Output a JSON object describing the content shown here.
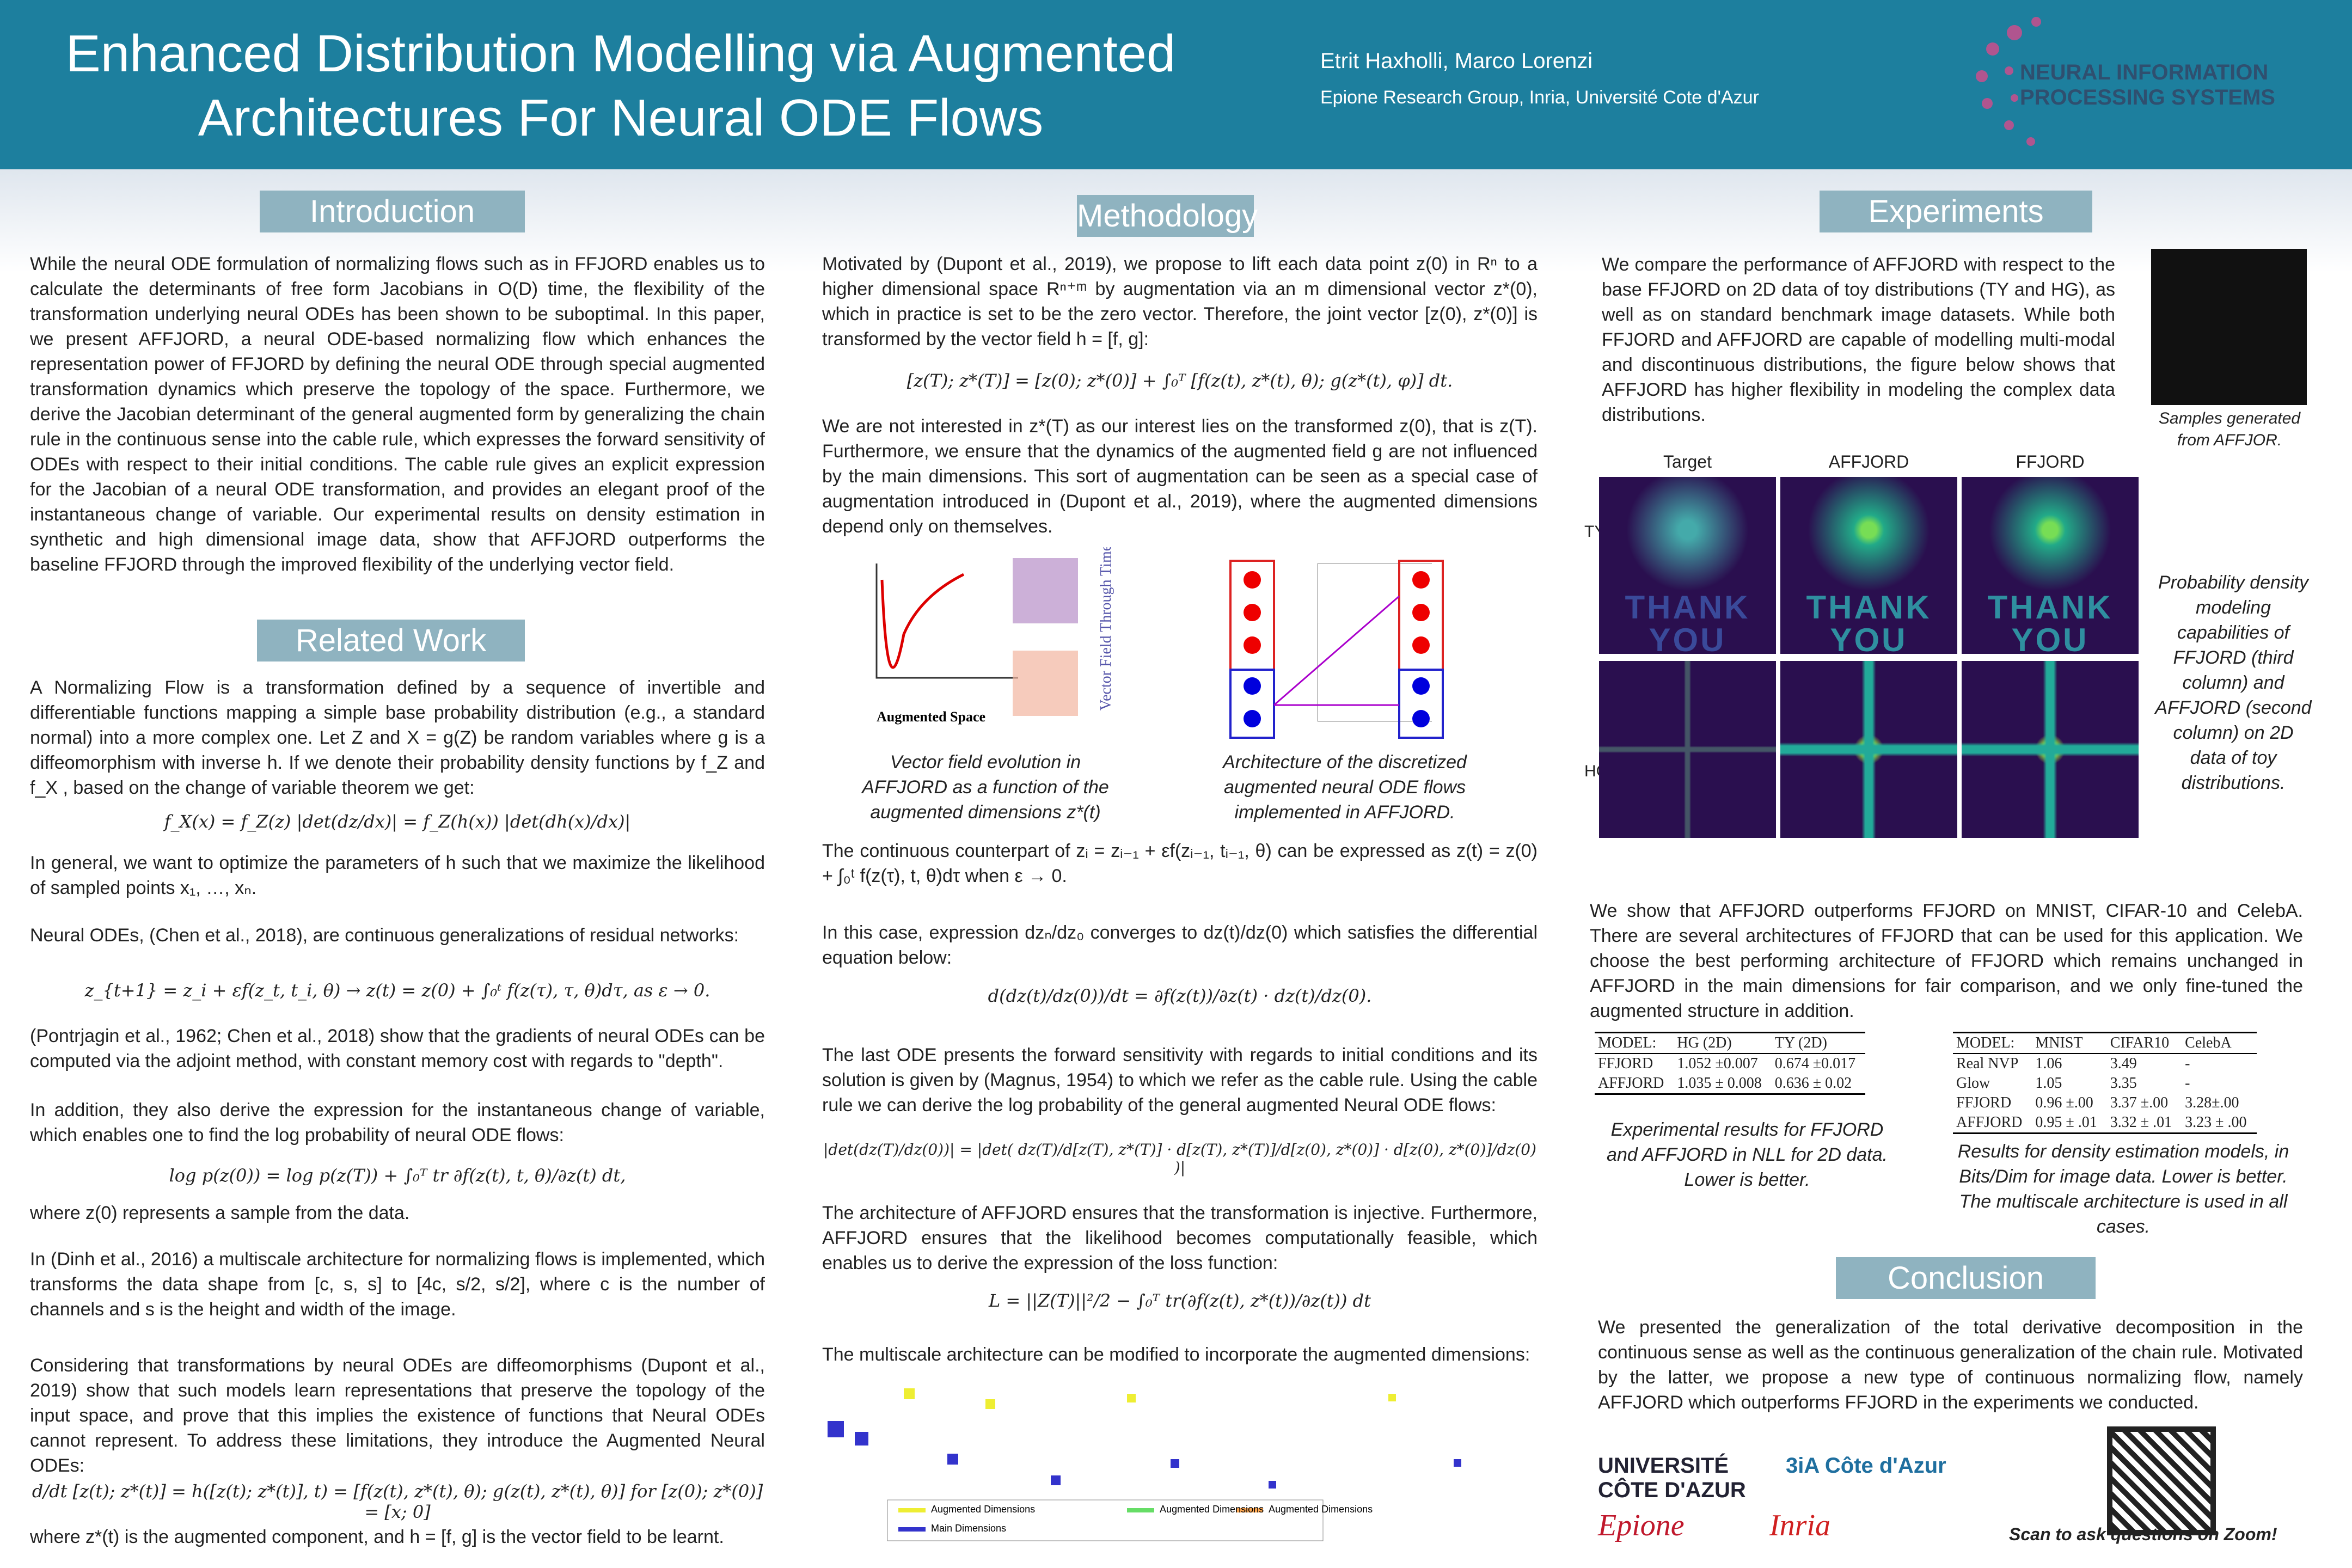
{
  "header": {
    "title": "Enhanced Distribution Modelling via Augmented Architectures For Neural ODE Flows",
    "authors": "Etrit Haxholli, Marco Lorenzi",
    "affiliation": "Epione Research Group, Inria, Université Cote d'Azur",
    "logo_text": "NEURAL INFORMATION PROCESSING SYSTEMS"
  },
  "introduction": {
    "heading": "Introduction",
    "text": "While the neural ODE formulation of normalizing flows such as in FFJORD enables us to calculate the determinants of free form Jacobians in O(D) time, the flexibility of the transformation underlying neural ODEs has been shown to be suboptimal. In this paper, we present AFFJORD, a neural ODE-based normalizing flow which enhances the representation power of FFJORD by defining the neural ODE through special augmented transformation dynamics which preserve the topology of the space. Furthermore, we derive the Jacobian determinant of the general augmented form by generalizing the chain rule in the continuous sense into the cable rule, which expresses the forward sensitivity of ODEs with respect to their initial conditions. The cable rule gives an explicit expression for the Jacobian of a neural ODE transformation, and provides an elegant proof of the instantaneous change of variable. Our experimental results on density estimation in synthetic and high dimensional image  data, show that AFFJORD outperforms the baseline FFJORD through the improved flexibility of the underlying vector field."
  },
  "related_work": {
    "heading": "Related Work",
    "paragraphs": [
      "A Normalizing Flow is a transformation defined by a sequence of invertible and differentiable functions mapping a simple base probability distribution (e.g., a standard normal) into a more complex one. Let Z and X = g(Z) be random variables where g is a diffeomorphism with inverse h. If we denote their probability density functions by f_Z and f_X , based on the change of variable theorem we get:",
      "f_X(x) = f_Z(z) |det(dz/dx)| = f_Z(h(x)) |det(dh(x)/dx)|",
      "In general, we want to optimize the parameters of h such that we maximize the likelihood of sampled points x₁, …, xₙ.",
      "Neural ODEs, (Chen et al., 2018), are continuous generalizations of residual networks:",
      "z_{t+1} = z_i + εf(z_t, t_i, θ) → z(t) = z(0) + ∫₀ᵗ f(z(τ), τ, θ)dτ, as ε → 0.",
      "(Pontrjagin et al., 1962; Chen et al., 2018) show that the gradients of neural ODEs can be computed via the adjoint method, with constant memory cost with regards to \"depth\".",
      "In addition, they also derive the expression for the instantaneous change of variable, which enables one to find the log probability of neural ODE flows:",
      "log p(z(0)) = log p(z(T)) + ∫₀ᵀ tr ∂f(z(t), t, θ)/∂z(t) dt,",
      "where z(0) represents a sample from the data.",
      "In (Dinh et al., 2016) a multiscale architecture for normalizing flows is implemented, which transforms the data shape from [c, s, s] to [4c, s/2, s/2], where c is the number of channels and s is the height and width of the image.",
      "Considering that transformations by neural ODEs are diffeomorphisms (Dupont et al., 2019)  show that such models learn representations that preserve the topology of the input space, and prove that this implies the existence of functions that Neural ODEs cannot represent. To address these limitations, they introduce the Augmented Neural ODEs:",
      "d/dt [z(t); z*(t)] = h([z(t); z*(t)], t) = [f(z(t), z*(t), θ); g(z(t), z*(t), θ)]  for  [z(0); z*(0)] = [x; 0]",
      "where z*(t) is the augmented component, and h = [f, g] is the vector  field to  be learnt."
    ]
  },
  "methodology": {
    "heading": "Methodology",
    "paragraphs": [
      "Motivated by (Dupont et al., 2019), we propose to lift each data point z(0) in Rⁿ to a higher dimensional space Rⁿ⁺ᵐ by augmentation via an m dimensional vector z*(0), which in practice is set to be the zero vector. Therefore, the joint vector [z(0), z*(0)] is transformed by the vector field h = [f, g]:",
      "[z(T); z*(T)] = [z(0); z*(0)] + ∫₀ᵀ [f(z(t), z*(t), θ); g(z*(t), φ)] dt.",
      "We are not interested in z*(T) as our interest lies on the transformed z(0), that is z(T). Furthermore, we ensure that the dynamics of the augmented field g are not influenced by the main dimensions. This sort of augmentation can be seen as a special case of augmentation introduced in (Dupont et al., 2019), where the augmented dimensions depend only on themselves.",
      "The continuous counterpart of  zᵢ = zᵢ₋₁ + εf(zᵢ₋₁, tᵢ₋₁, θ) can be expressed as  z(t) = z(0) + ∫₀ᵗ f(z(τ), t, θ)dτ  when ε → 0.",
      "In this case, expression dzₙ/dz₀ converges to dz(t)/dz(0) which satisfies the differential equation below:",
      "d(dz(t)/dz(0))/dt = ∂f(z(t))/∂z(t) · dz(t)/dz(0).",
      "The last ODE presents the forward sensitivity with regards to initial conditions and its solution is given by (Magnus, 1954) to which we refer as the cable rule. Using the cable rule we can derive the log probability of the general augmented Neural ODE flows:",
      "|det(dz(T)/dz(0))| = |det( dz(T)/d[z(T), z*(T)] · d[z(T), z*(T)]/d[z(0), z*(0)] · d[z(0), z*(0)]/dz(0) )|",
      "The architecture of AFFJORD ensures that the transformation is injective. Furthermore, AFFJORD ensures that the likelihood becomes computationally feasible, which enables us to derive the expression of the loss function:",
      "L = ||Z(T)||²/2 − ∫₀ᵀ tr(∂f(z(t), z*(t))/∂z(t)) dt",
      "The multiscale architecture can be modified to incorporate the augmented dimensions:"
    ],
    "figure1_caption": "Vector field evolution in AFFJORD as a function of the augmented dimensions z*(t)",
    "figure1_labels": [
      "Augmented Space",
      "Vector Field Through Time"
    ],
    "figure2_caption": "Architecture of the discretized augmented neural ODE flows implemented in AFFJORD.",
    "figure3_legend": [
      "Augmented Dimensions",
      "Augmented Dimensions",
      "Augmented Dimensions",
      "Main Dimensions"
    ]
  },
  "experiments": {
    "heading": "Experiments",
    "text1": "We compare the performance of AFFJORD with respect to the base FFJORD on 2D data of toy distributions (TY and HG), as well as on standard benchmark image datasets. While both FFJORD and AFFJORD are capable of modelling multi-modal and discontinuous distributions, the figure below shows that AFFJORD has higher flexibility in modeling the complex data distributions.",
    "samples_caption": "Samples generated from AFFJOR.",
    "grid_columns": [
      "Target",
      "AFFJORD",
      "FFJORD"
    ],
    "grid_rows": [
      "TY",
      "HG"
    ],
    "grid_text": [
      "THANK",
      "YOU"
    ],
    "grid_caption": "Probability density modeling capabilities of FFJORD (third column) and AFFJORD (second column) on 2D data of toy distributions.",
    "text2": "We show that AFFJORD outperforms FFJORD on MNIST, CIFAR-10 and CelebA. There are several architectures of FFJORD that can be used for this application. We choose the best performing architecture of FFJORD which remains unchanged in AFFJORD in the main dimensions for fair comparison, and we only fine-tuned the augmented structure in addition.",
    "table1": {
      "header": [
        "MODEL:",
        "HG (2D)",
        "TY (2D)"
      ],
      "rows": [
        [
          "FFJORD",
          "1.052 ±0.007",
          "0.674 ±0.017"
        ],
        [
          "AFFJORD",
          "1.035 ± 0.008",
          "0.636 ± 0.02"
        ]
      ],
      "caption": "Experimental results for FFJORD and AFFJORD in NLL for 2D data. Lower is better."
    },
    "table2": {
      "header": [
        "MODEL:",
        "MNIST",
        "CIFAR10",
        "CelebA"
      ],
      "rows": [
        [
          "Real NVP",
          "1.06",
          "3.49",
          "-"
        ],
        [
          "Glow",
          "1.05",
          "3.35",
          "-"
        ],
        [
          "FFJORD",
          "0.96 ±.00",
          "3.37 ±.00",
          "3.28±.00"
        ],
        [
          "AFFJORD",
          "0.95 ± .01",
          "3.32 ± .01",
          "3.23 ± .00"
        ]
      ],
      "caption": "Results for density estimation models, in Bits/Dim for image data. Lower is better. The multiscale architecture is used in all cases."
    }
  },
  "conclusion": {
    "heading": "Conclusion",
    "text": "We presented the generalization of the total derivative decomposition in the continuous sense as well as the continuous generalization of the chain rule. Motivated by the latter, we propose a new type of continuous normalizing flow, namely AFFJORD which outperforms FFJORD in the experiments we conducted."
  },
  "footer": {
    "logos": [
      "UNIVERSITÉ CÔTE D'AZUR",
      "3iA Côte d'Azur",
      "Epione",
      "Inria"
    ],
    "qr_caption": "Scan to ask questions on Zoom!"
  }
}
